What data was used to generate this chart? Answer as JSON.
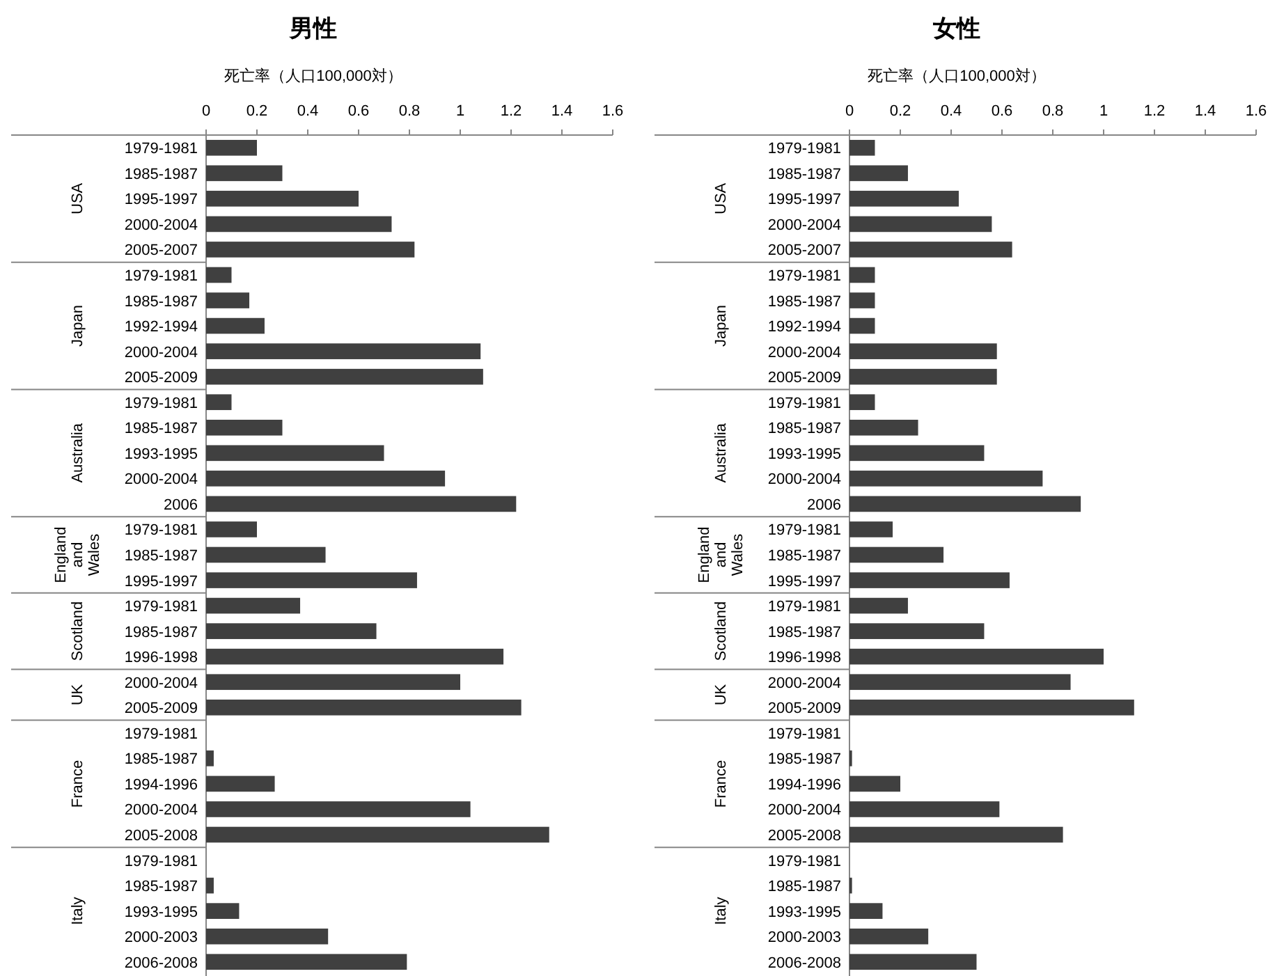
{
  "chart_data": [
    {
      "type": "bar",
      "orientation": "horizontal",
      "title": "男性",
      "xlabel": "死亡率（人口100,000対）",
      "categories": [
        "1979-1981",
        "1985-1987",
        "1995-1997",
        "2000-2004",
        "2005-2007",
        "1979-1981",
        "1985-1987",
        "1992-1994",
        "2000-2004",
        "2005-2009",
        "1979-1981",
        "1985-1987",
        "1993-1995",
        "2000-2004",
        "2006",
        "1979-1981",
        "1985-1987",
        "1995-1997",
        "1979-1981",
        "1985-1987",
        "1996-1998",
        "2000-2004",
        "2005-2009",
        "1979-1981",
        "1985-1987",
        "1994-1996",
        "2000-2004",
        "2005-2008",
        "1979-1981",
        "1985-1987",
        "1993-1995",
        "2000-2003",
        "2006-2008"
      ],
      "values": [
        0.2,
        0.3,
        0.6,
        0.73,
        0.82,
        0.1,
        0.17,
        0.23,
        1.08,
        1.09,
        0.1,
        0.3,
        0.7,
        0.94,
        1.22,
        0.2,
        0.47,
        0.83,
        0.37,
        0.67,
        1.17,
        1.0,
        1.24,
        null,
        0.03,
        0.27,
        1.04,
        1.35,
        null,
        0.03,
        0.13,
        0.48,
        0.79
      ],
      "color": "#404040",
      "xlim": [
        0,
        1.6
      ],
      "xticks": [
        0,
        0.2,
        0.4,
        0.6,
        0.8,
        1,
        1.2,
        1.4,
        1.6
      ],
      "annotations": [
        "USA",
        "Japan",
        "Australia",
        "England and Wales",
        "Scotland",
        "UK",
        "France",
        "Italy"
      ]
    },
    {
      "type": "bar",
      "orientation": "horizontal",
      "title": "女性",
      "xlabel": "死亡率（人口100,000対）",
      "categories": [
        "1979-1981",
        "1985-1987",
        "1995-1997",
        "2000-2004",
        "2005-2007",
        "1979-1981",
        "1985-1987",
        "1992-1994",
        "2000-2004",
        "2005-2009",
        "1979-1981",
        "1985-1987",
        "1993-1995",
        "2000-2004",
        "2006",
        "1979-1981",
        "1985-1987",
        "1995-1997",
        "1979-1981",
        "1985-1987",
        "1996-1998",
        "2000-2004",
        "2005-2009",
        "1979-1981",
        "1985-1987",
        "1994-1996",
        "2000-2004",
        "2005-2008",
        "1979-1981",
        "1985-1987",
        "1993-1995",
        "2000-2003",
        "2006-2008"
      ],
      "values": [
        0.1,
        0.23,
        0.43,
        0.56,
        0.64,
        0.1,
        0.1,
        0.1,
        0.58,
        0.58,
        0.1,
        0.27,
        0.53,
        0.76,
        0.91,
        0.17,
        0.37,
        0.63,
        0.23,
        0.53,
        1.0,
        0.87,
        1.12,
        null,
        0.01,
        0.2,
        0.59,
        0.84,
        null,
        0.01,
        0.13,
        0.31,
        0.5
      ],
      "color": "#404040",
      "xlim": [
        0,
        1.6
      ],
      "xticks": [
        0,
        0.2,
        0.4,
        0.6,
        0.8,
        1,
        1.2,
        1.4,
        1.6
      ],
      "annotations": [
        "USA",
        "Japan",
        "Australia",
        "England and Wales",
        "Scotland",
        "UK",
        "France",
        "Italy"
      ]
    }
  ]
}
